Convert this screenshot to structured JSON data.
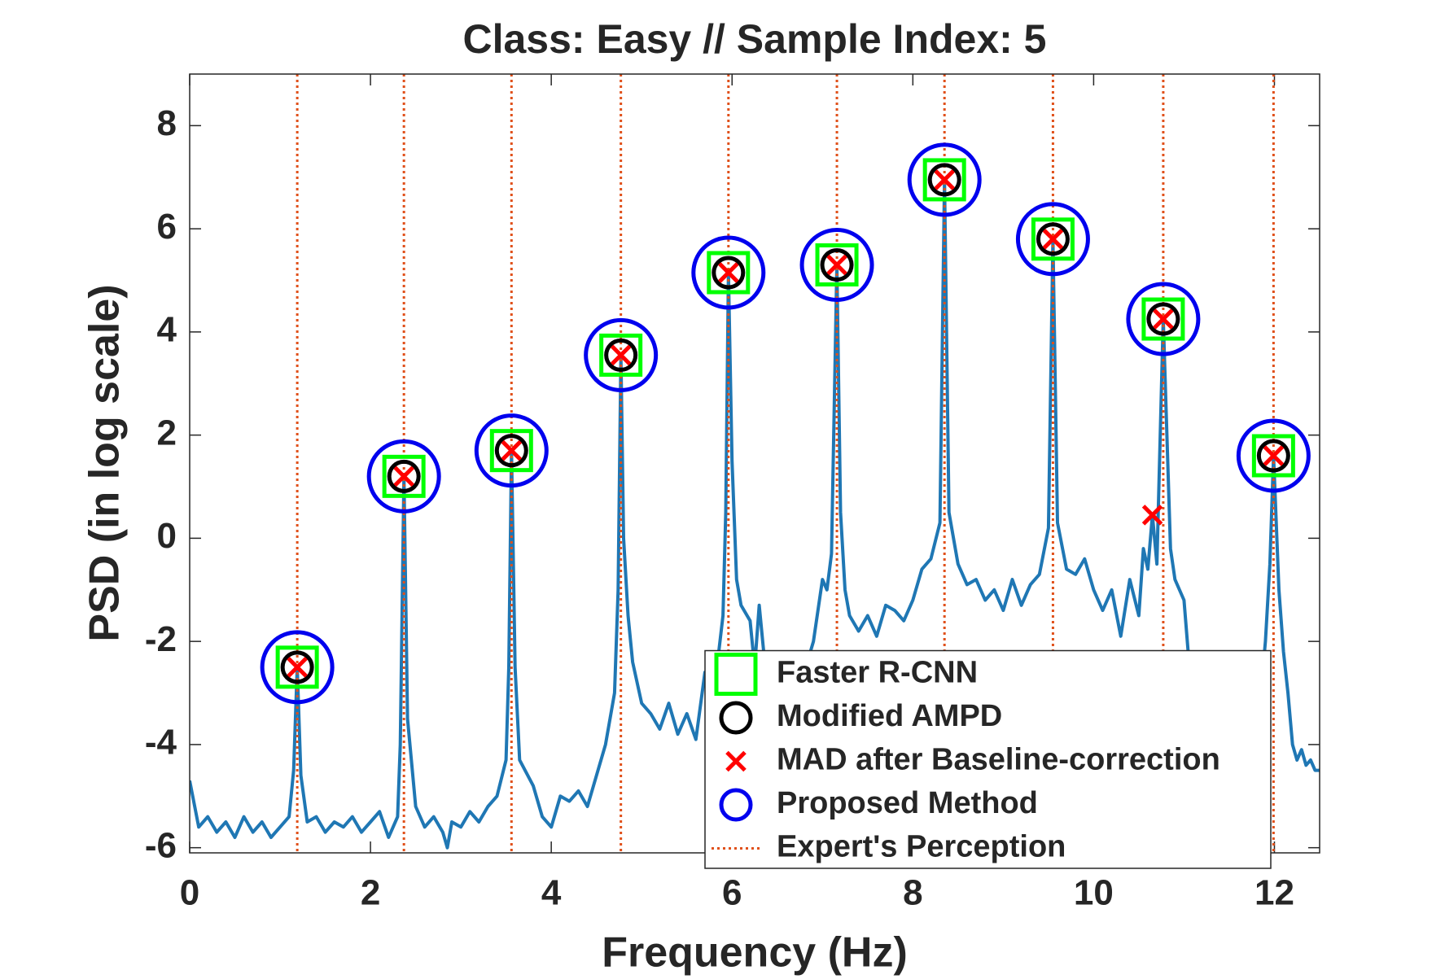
{
  "chart_data": {
    "type": "line",
    "title": "Class: Easy  //  Sample Index: 5",
    "x_label": "Frequency (Hz)",
    "y_label": "PSD (in log scale)",
    "xlim": [
      0,
      12.5
    ],
    "ylim": [
      -6.1,
      9
    ],
    "xticks": [
      0,
      2,
      4,
      6,
      8,
      10,
      12
    ],
    "yticks": [
      -6,
      -4,
      -2,
      0,
      2,
      4,
      6,
      8
    ],
    "legend": "lower right",
    "line": {
      "color": "#1f77b4",
      "x": [
        0.0,
        0.1,
        0.2,
        0.3,
        0.4,
        0.5,
        0.6,
        0.7,
        0.8,
        0.9,
        1.0,
        1.1,
        1.15,
        1.19,
        1.23,
        1.3,
        1.4,
        1.5,
        1.6,
        1.7,
        1.8,
        1.9,
        2.0,
        2.1,
        2.2,
        2.3,
        2.33,
        2.37,
        2.41,
        2.5,
        2.6,
        2.7,
        2.8,
        2.85,
        2.9,
        3.0,
        3.1,
        3.2,
        3.3,
        3.4,
        3.5,
        3.53,
        3.56,
        3.6,
        3.65,
        3.8,
        3.9,
        4.0,
        4.1,
        4.2,
        4.3,
        4.4,
        4.5,
        4.6,
        4.7,
        4.74,
        4.77,
        4.8,
        4.85,
        4.9,
        5.0,
        5.1,
        5.2,
        5.3,
        5.4,
        5.5,
        5.6,
        5.7,
        5.8,
        5.9,
        5.93,
        5.96,
        6.0,
        6.05,
        6.1,
        6.2,
        6.25,
        6.3,
        6.35,
        6.4,
        6.5,
        6.6,
        6.7,
        6.8,
        6.85,
        6.9,
        7.0,
        7.05,
        7.1,
        7.16,
        7.2,
        7.25,
        7.3,
        7.4,
        7.5,
        7.6,
        7.7,
        7.8,
        7.9,
        8.0,
        8.1,
        8.2,
        8.3,
        8.35,
        8.4,
        8.5,
        8.6,
        8.7,
        8.8,
        8.9,
        9.0,
        9.1,
        9.2,
        9.3,
        9.4,
        9.5,
        9.55,
        9.6,
        9.7,
        9.8,
        9.9,
        10.0,
        10.1,
        10.2,
        10.3,
        10.4,
        10.5,
        10.55,
        10.6,
        10.65,
        10.7,
        10.77,
        10.85,
        10.9,
        11.0,
        11.05,
        11.1,
        11.3,
        11.5,
        11.7,
        11.85,
        11.9,
        11.95,
        11.99,
        12.05,
        12.1,
        12.15,
        12.2,
        12.25,
        12.3,
        12.35,
        12.4,
        12.45,
        12.5
      ],
      "values": [
        -4.7,
        -5.6,
        -5.4,
        -5.7,
        -5.5,
        -5.8,
        -5.4,
        -5.7,
        -5.5,
        -5.8,
        -5.6,
        -5.4,
        -4.5,
        -2.5,
        -4.6,
        -5.5,
        -5.4,
        -5.7,
        -5.5,
        -5.6,
        -5.4,
        -5.7,
        -5.5,
        -5.3,
        -5.8,
        -5.4,
        -4.0,
        1.2,
        -3.5,
        -5.2,
        -5.6,
        -5.4,
        -5.7,
        -6.0,
        -5.5,
        -5.6,
        -5.3,
        -5.5,
        -5.2,
        -5.0,
        -4.3,
        -2.5,
        1.7,
        -2.5,
        -4.3,
        -4.8,
        -5.4,
        -5.6,
        -5.0,
        -5.1,
        -4.9,
        -5.2,
        -4.6,
        -4.0,
        -3.0,
        -1.0,
        3.55,
        0.0,
        -1.5,
        -2.4,
        -3.2,
        -3.4,
        -3.7,
        -3.2,
        -3.8,
        -3.4,
        -3.9,
        -2.6,
        -3.0,
        -1.5,
        0.5,
        5.15,
        1.5,
        -0.8,
        -1.3,
        -1.6,
        -2.5,
        -1.3,
        -2.2,
        -3.5,
        -4.0,
        -4.2,
        -4.0,
        -3.5,
        -2.3,
        -2.0,
        -0.8,
        -1.0,
        -0.3,
        5.3,
        0.5,
        -1.0,
        -1.5,
        -1.8,
        -1.5,
        -1.9,
        -1.3,
        -1.4,
        -1.6,
        -1.2,
        -0.6,
        -0.4,
        0.3,
        6.95,
        0.5,
        -0.5,
        -0.9,
        -0.8,
        -1.2,
        -1.0,
        -1.4,
        -0.8,
        -1.3,
        -0.9,
        -0.7,
        0.2,
        5.8,
        0.3,
        -0.6,
        -0.7,
        -0.4,
        -1.0,
        -1.4,
        -1.0,
        -1.9,
        -0.8,
        -1.5,
        -0.2,
        -0.6,
        0.45,
        -0.5,
        4.25,
        -0.2,
        -0.8,
        -1.2,
        -2.3,
        -3.5,
        -4.5,
        -4.6,
        -4.3,
        -3.0,
        -2.0,
        -0.5,
        1.6,
        -1.0,
        -2.2,
        -3.0,
        -4.0,
        -4.3,
        -4.1,
        -4.4,
        -4.3,
        -4.5,
        -4.5
      ]
    },
    "series": [
      {
        "name": "Faster R-CNN",
        "color": "#00ff00",
        "marker": "square",
        "x": [
          1.19,
          2.37,
          3.56,
          4.77,
          5.96,
          7.16,
          8.35,
          9.55,
          10.77,
          11.99
        ],
        "values": [
          -2.5,
          1.2,
          1.7,
          3.55,
          5.15,
          5.3,
          6.95,
          5.8,
          4.25,
          1.6
        ]
      },
      {
        "name": "Modified AMPD",
        "color": "#000000",
        "marker": "circle",
        "x": [
          1.19,
          2.37,
          3.56,
          4.77,
          5.96,
          7.16,
          8.35,
          9.55,
          10.77,
          11.99
        ],
        "values": [
          -2.5,
          1.2,
          1.7,
          3.55,
          5.15,
          5.3,
          6.95,
          5.8,
          4.25,
          1.6
        ]
      },
      {
        "name": "MAD after Baseline-correction",
        "color": "#ff0000",
        "marker": "x",
        "x": [
          1.19,
          2.37,
          3.56,
          4.77,
          5.96,
          7.16,
          8.35,
          9.55,
          10.65,
          10.77,
          11.99
        ],
        "values": [
          -2.5,
          1.2,
          1.7,
          3.55,
          5.15,
          5.3,
          6.95,
          5.8,
          0.45,
          4.25,
          1.6
        ]
      },
      {
        "name": "Proposed Method",
        "color": "#0000ee",
        "marker": "large-circle",
        "x": [
          1.19,
          2.37,
          3.56,
          4.77,
          5.96,
          7.16,
          8.35,
          9.55,
          10.77,
          11.99
        ],
        "values": [
          -2.5,
          1.2,
          1.7,
          3.55,
          5.15,
          5.3,
          6.95,
          5.8,
          4.25,
          1.6
        ]
      },
      {
        "name": "Expert's Perception",
        "color": "#e0501a",
        "marker": "vline",
        "x": [
          1.19,
          2.37,
          3.56,
          4.77,
          5.96,
          7.16,
          8.35,
          9.55,
          10.77,
          11.99
        ]
      }
    ]
  }
}
